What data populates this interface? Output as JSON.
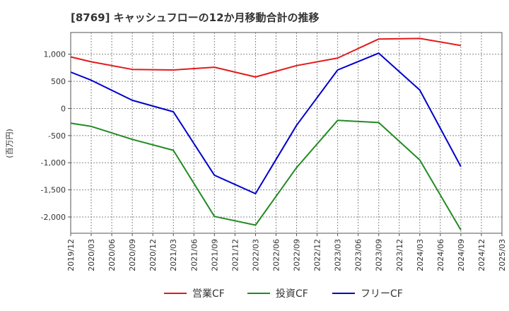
{
  "chart_data": {
    "type": "line",
    "title": "[8769]  キャッシュフローの12か月移動合計の推移",
    "ylabel": "(百万円)",
    "xlabel": "",
    "ylim": [
      -2300,
      1400
    ],
    "yticks": [
      1000,
      500,
      0,
      -500,
      -1000,
      -1500,
      -2000
    ],
    "ytick_labels": [
      "1,000",
      "500",
      "0",
      "-500",
      "-1,000",
      "-1,500",
      "-2,000"
    ],
    "x": [
      "2019/12",
      "2020/03",
      "2020/06",
      "2020/09",
      "2020/12",
      "2021/03",
      "2021/06",
      "2021/09",
      "2021/12",
      "2022/03",
      "2022/06",
      "2022/09",
      "2022/12",
      "2023/03",
      "2023/06",
      "2023/09",
      "2023/12",
      "2024/03",
      "2024/06",
      "2024/09",
      "2024/12",
      "2025/03"
    ],
    "grid": true,
    "legend_position": "bottom",
    "series": [
      {
        "name": "営業CF",
        "color": "#e31a1c",
        "values": [
          950,
          860,
          null,
          720,
          null,
          710,
          null,
          760,
          null,
          580,
          null,
          790,
          null,
          930,
          null,
          1280,
          null,
          1290,
          null,
          1160,
          null,
          null
        ]
      },
      {
        "name": "投資CF",
        "color": "#228b22",
        "values": [
          -270,
          -330,
          null,
          -570,
          null,
          -770,
          null,
          -1990,
          null,
          -2150,
          null,
          -1090,
          null,
          -220,
          null,
          -260,
          null,
          -950,
          null,
          -2240,
          null,
          null
        ]
      },
      {
        "name": "フリーCF",
        "color": "#0000cc",
        "values": [
          670,
          520,
          null,
          150,
          null,
          -60,
          null,
          -1230,
          null,
          -1570,
          null,
          -310,
          null,
          710,
          null,
          1020,
          null,
          340,
          null,
          -1070,
          null,
          null
        ]
      }
    ]
  }
}
